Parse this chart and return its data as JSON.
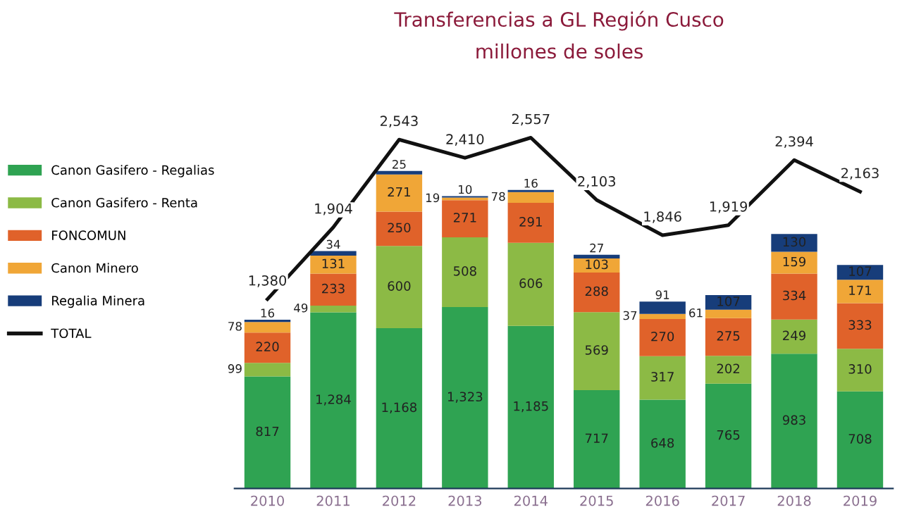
{
  "chart_data": {
    "type": "bar",
    "stacked": true,
    "title": "Transferencias a GL Región Cusco",
    "subtitle": "millones de soles",
    "categories": [
      "2010",
      "2011",
      "2012",
      "2013",
      "2014",
      "2015",
      "2016",
      "2017",
      "2018",
      "2019"
    ],
    "series": [
      {
        "name": "Canon Gasifero - Regalias",
        "color": "#2fa352",
        "values": [
          817,
          1284,
          1168,
          1323,
          1185,
          717,
          648,
          765,
          983,
          708
        ],
        "value_labels": [
          "817",
          "1,284",
          "1,168",
          "1,323",
          "1,185",
          "717",
          "648",
          "765",
          "983",
          "708"
        ]
      },
      {
        "name": "Canon Gasifero - Renta",
        "color": "#8cba45",
        "values": [
          99,
          49,
          600,
          508,
          606,
          569,
          317,
          202,
          249,
          310
        ],
        "value_labels": [
          "99",
          "49",
          "600",
          "508",
          "606",
          "569",
          "317",
          "202",
          "249",
          "310"
        ]
      },
      {
        "name": "FONCOMUN",
        "color": "#e0622a",
        "values": [
          220,
          233,
          250,
          271,
          291,
          288,
          270,
          275,
          334,
          333
        ],
        "value_labels": [
          "220",
          "233",
          "250",
          "271",
          "291",
          "288",
          "270",
          "275",
          "334",
          "333"
        ]
      },
      {
        "name": "Canon Minero",
        "color": "#f0a637",
        "values": [
          78,
          131,
          271,
          19,
          78,
          103,
          37,
          61,
          159,
          171
        ],
        "value_labels": [
          "78",
          "131",
          "271",
          "19",
          "78",
          "103",
          "37",
          "61",
          "159",
          "171"
        ]
      },
      {
        "name": "Regalia Minera",
        "color": "#173d7a",
        "values": [
          16,
          34,
          25,
          10,
          16,
          27,
          91,
          107,
          130,
          107
        ],
        "value_labels": [
          "16",
          "34",
          "25",
          "10",
          "16",
          "27",
          "91",
          "107",
          "130",
          "107"
        ]
      },
      {
        "name": "TOTAL",
        "type": "line",
        "color": "#111111",
        "values": [
          1380,
          1904,
          2543,
          2410,
          2557,
          2103,
          1846,
          1919,
          2394,
          2163
        ],
        "value_labels": [
          "1,380",
          "1,904",
          "2,543",
          "2,410",
          "2,557",
          "2,103",
          "1,846",
          "1,919",
          "2,394",
          "2,163"
        ]
      }
    ],
    "legend": "left",
    "grid": false,
    "marker": "none",
    "line_style": "solid"
  }
}
